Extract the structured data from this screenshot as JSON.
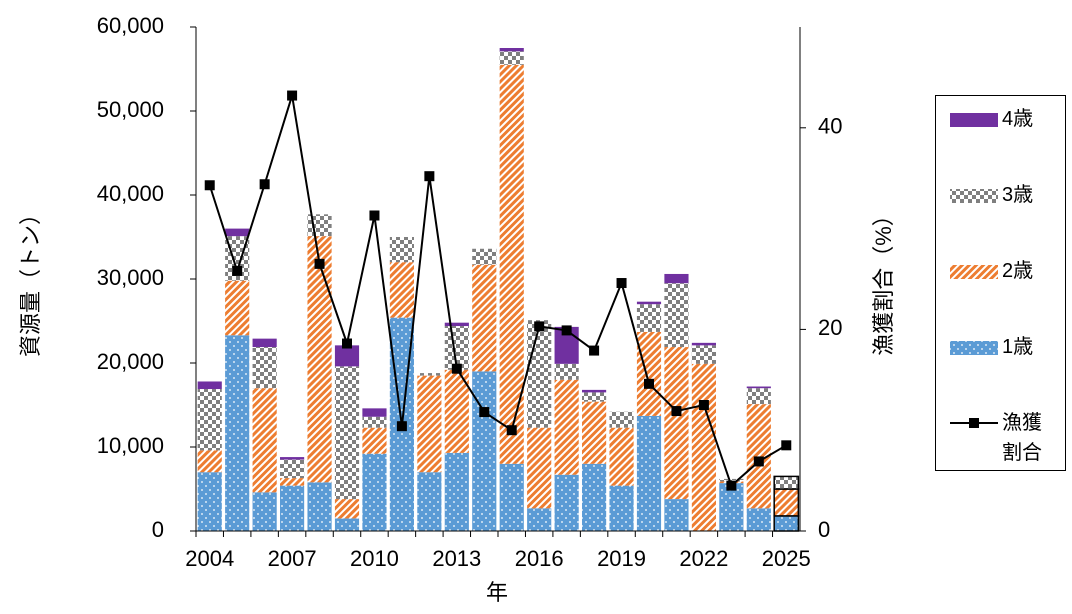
{
  "chart_data": {
    "type": "bar",
    "stacked": true,
    "categories": [
      "2004",
      null,
      null,
      "2007",
      null,
      null,
      "2010",
      null,
      null,
      "2013",
      null,
      null,
      "2016",
      null,
      null,
      "2019",
      null,
      null,
      "2022",
      null,
      null,
      "2025"
    ],
    "xlabel": "年",
    "ylabel": "資源量（トン）",
    "y2label": "漁獲割合（%）",
    "ylim": [
      0,
      60000
    ],
    "yticks": [
      0,
      {
        "value": 10000,
        "label": "10,000"
      },
      {
        "value": 20000,
        "label": "20,000"
      },
      {
        "value": 30000,
        "label": "30,000"
      },
      {
        "value": 40000,
        "label": "40,000"
      },
      {
        "value": 50000,
        "label": "50,000"
      },
      {
        "value": 60000,
        "label": "60,000"
      }
    ],
    "y2lim": [
      0,
      50
    ],
    "y2ticks": [
      0,
      20,
      40
    ],
    "outline_last": true,
    "series": [
      {
        "name": "1歳",
        "color": "#5b9bd5",
        "pattern": "dots",
        "values": [
          7000,
          23300,
          4600,
          5400,
          5800,
          1500,
          9200,
          25400,
          7000,
          9300,
          19000,
          8000,
          2700,
          6700,
          8000,
          5400,
          13700,
          3800,
          0,
          5700,
          2700,
          1800
        ]
      },
      {
        "name": "2歳",
        "color": "#ed7d31",
        "pattern": "stripes",
        "values": [
          2600,
          6500,
          12400,
          900,
          29300,
          2300,
          3100,
          6600,
          11500,
          9900,
          12700,
          47500,
          9600,
          11300,
          7400,
          6900,
          10000,
          18100,
          19900,
          200,
          12400,
          3200
        ]
      },
      {
        "name": "3歳",
        "color": "#7f7f7f",
        "pattern": "checker",
        "values": [
          7300,
          5300,
          4900,
          2200,
          2600,
          15800,
          1300,
          3000,
          300,
          5200,
          1900,
          1600,
          12800,
          1900,
          1100,
          1900,
          3300,
          7600,
          2200,
          300,
          1900,
          1500
        ]
      },
      {
        "name": "4歳",
        "color": "#7030a0",
        "pattern": "solid",
        "values": [
          900,
          900,
          1000,
          300,
          0,
          2500,
          1000,
          0,
          0,
          400,
          0,
          400,
          0,
          4400,
          300,
          0,
          300,
          1100,
          300,
          0,
          200,
          0
        ]
      },
      {
        "name": "漁獲\n割合",
        "color": "#000000",
        "type": "line",
        "axis": "y2",
        "values": [
          34.3,
          25.8,
          34.4,
          43.2,
          26.5,
          18.6,
          31.3,
          10.4,
          35.2,
          16.1,
          11.8,
          10.0,
          20.3,
          19.9,
          17.9,
          24.6,
          14.6,
          11.9,
          12.5,
          4.5,
          6.9,
          8.5
        ]
      }
    ]
  }
}
